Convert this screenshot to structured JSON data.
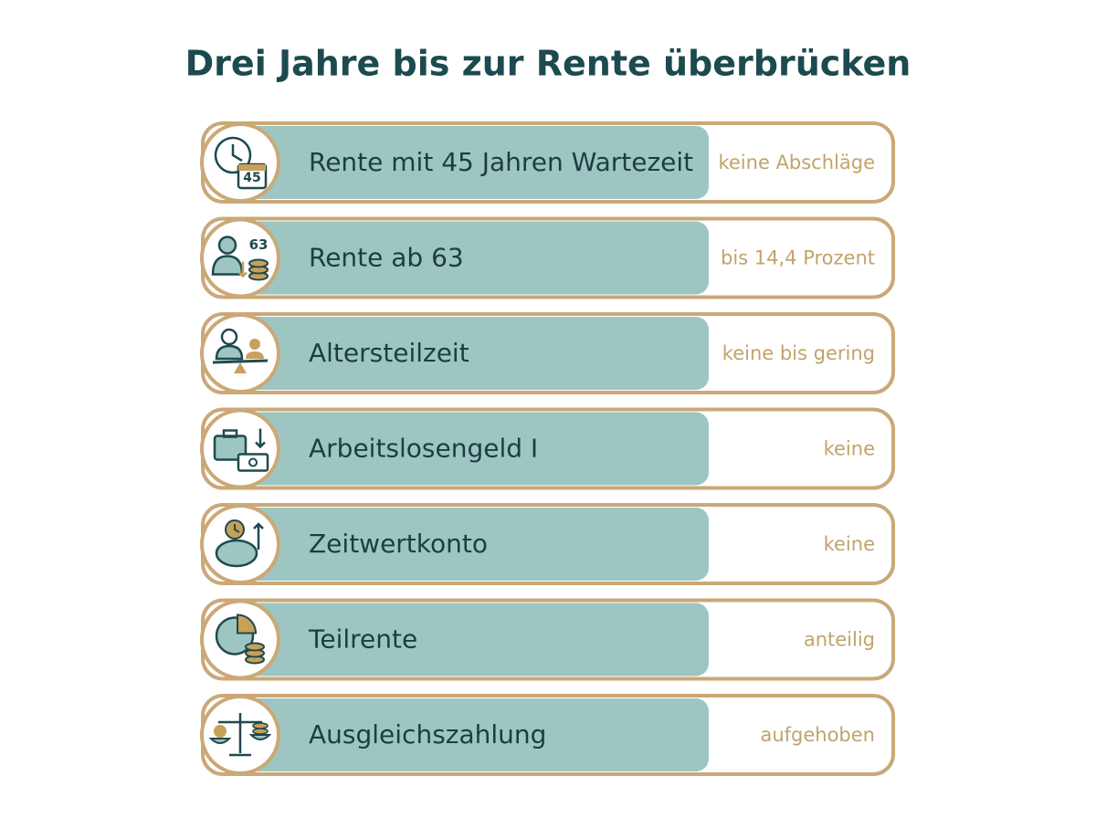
{
  "title": "Drei Jahre bis zur Rente überbrücken",
  "rows": [
    {
      "label": "Rente mit 45 Jahren Wartezeit",
      "note": "keine Abschläge",
      "icon_text": "45"
    },
    {
      "label": "Rente ab 63",
      "note": "bis 14,4 Prozent",
      "icon_text": "63"
    },
    {
      "label": "Altersteilzeit",
      "note": "keine bis gering"
    },
    {
      "label": "Arbeitslosengeld I",
      "note": "keine"
    },
    {
      "label": "Zeitwertkonto",
      "note": "keine"
    },
    {
      "label": "Teilrente",
      "note": "anteilig"
    },
    {
      "label": "Ausgleichszahlung",
      "note": "aufgehoben"
    }
  ]
}
